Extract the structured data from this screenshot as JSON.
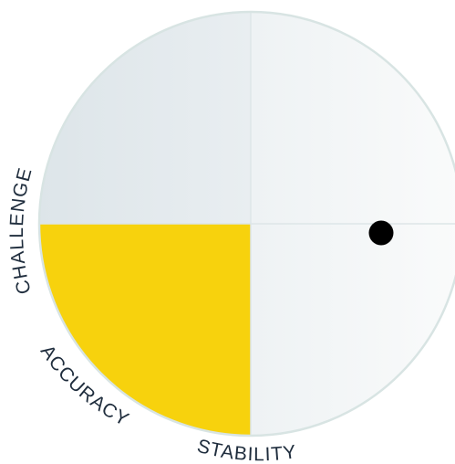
{
  "labels": {
    "challenge": "CHALLENGE",
    "accuracy": "ACCURACY",
    "stability": "STABILITY"
  },
  "quadrants": {
    "top_left": {
      "highlighted": false
    },
    "top_right": {
      "highlighted": false
    },
    "bottom_left": {
      "highlighted": true
    },
    "bottom_right": {
      "highlighted": false
    }
  },
  "marker": {
    "shape": "dot",
    "color": "#000000"
  },
  "colors": {
    "highlight": "#f7d20d",
    "quadrant_dark": "#dfe7ea",
    "quadrant_light": "#f6f8f9",
    "divider": "#dde6e8",
    "outline": "#d8e4e3",
    "label_text": "#1f2d3d"
  }
}
